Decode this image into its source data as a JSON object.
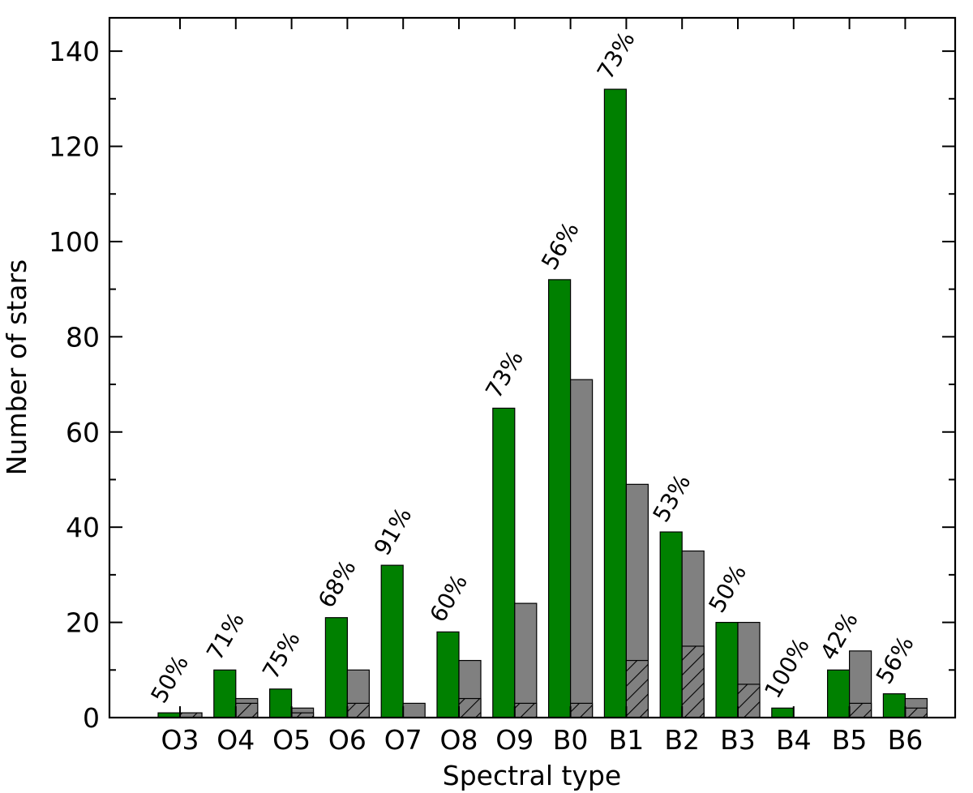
{
  "chart_data": {
    "type": "bar",
    "title": "",
    "xlabel": "Spectral type",
    "ylabel": "Number of stars",
    "ylim": [
      0,
      147
    ],
    "yticks": [
      "0",
      "20",
      "40",
      "60",
      "80",
      "100",
      "120",
      "140"
    ],
    "grid": false,
    "legend": "none",
    "categories": [
      "O3",
      "O4",
      "O5",
      "O6",
      "O7",
      "O8",
      "O9",
      "B0",
      "B1",
      "B2",
      "B3",
      "B4",
      "B5",
      "B6"
    ],
    "series": [
      {
        "values": [
          1,
          10,
          6,
          21,
          32,
          18,
          65,
          92,
          132,
          39,
          20,
          2,
          10,
          5
        ],
        "color": "#008000"
      },
      {
        "values": [
          1,
          4,
          2,
          10,
          3,
          12,
          24,
          71,
          49,
          35,
          20,
          0,
          14,
          4
        ],
        "color": "#808080"
      },
      {
        "values": [
          1,
          3,
          1,
          3,
          0,
          4,
          3,
          3,
          12,
          15,
          7,
          0,
          3,
          2
        ],
        "color": "#808080",
        "pattern": "hatched"
      }
    ],
    "annotations": [
      "50%",
      "71%",
      "75%",
      "68%",
      "91%",
      "60%",
      "73%",
      "56%",
      "73%",
      "53%",
      "50%",
      "100%",
      "42%",
      "56%"
    ]
  }
}
